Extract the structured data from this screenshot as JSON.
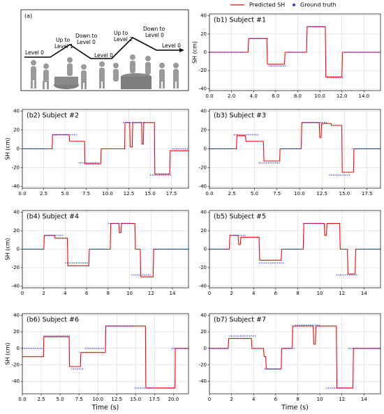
{
  "legend": {
    "items": [
      {
        "name": "Predicted SH",
        "color": "#ff0000"
      },
      {
        "name": "Ground truth",
        "color": "#3333ff"
      }
    ]
  },
  "diagram": {
    "label": "(a)",
    "steps": [
      [
        "Level 0"
      ],
      [
        "Up to",
        "Level 1"
      ],
      [
        "Down to",
        "Level 0"
      ],
      [
        "Level 0"
      ],
      [
        "Up to",
        "Level 2"
      ],
      [
        "Down to",
        "Level 0"
      ],
      [
        "Level 0"
      ]
    ]
  },
  "chart_data": [
    {
      "type": "line",
      "title": "(b1) Subject #1",
      "ylabel": "SH (cm)",
      "grid": true,
      "xlim": [
        0,
        15.5
      ],
      "ylim": [
        -42,
        42
      ],
      "yticks": [
        -40,
        -20,
        0,
        20,
        40
      ],
      "xticks": [
        {
          "value": 0,
          "label": "0.0"
        },
        {
          "value": 2,
          "label": "2.0"
        },
        {
          "value": 4,
          "label": "4.0"
        },
        {
          "value": 6,
          "label": "6.0"
        },
        {
          "value": 8,
          "label": "8.0"
        },
        {
          "value": 10,
          "label": "10.0"
        },
        {
          "value": 12,
          "label": "12.0"
        },
        {
          "value": 14,
          "label": "14.0"
        }
      ],
      "series": [
        {
          "color": "#ff0000",
          "x": [
            0,
            3.5,
            3.55,
            5.2,
            5.25,
            6.8,
            6.85,
            8.8,
            8.85,
            10.5,
            10.55,
            12.0,
            12.05,
            15.5
          ],
          "values": [
            0,
            0,
            15,
            15,
            -13,
            -13,
            0,
            0,
            28,
            28,
            -27,
            -27,
            0,
            0
          ]
        },
        {
          "color": "#3333ff",
          "dotted": true,
          "x": [
            0,
            3.3,
            3.45,
            3.6,
            5.3,
            5.35,
            5.4,
            7.0,
            7.05,
            7.1,
            8.7,
            8.75,
            8.8,
            10.6,
            10.65,
            10.7,
            12.1,
            12.15,
            12.2,
            15.5
          ],
          "values": [
            0,
            0,
            null,
            15,
            15,
            null,
            -15,
            -15,
            null,
            0,
            0,
            null,
            28,
            28,
            null,
            -28,
            -28,
            null,
            0,
            0
          ]
        }
      ]
    },
    {
      "type": "line",
      "title": "(b2) Subject #2",
      "ylabel": "SH (cm)",
      "grid": true,
      "xlim": [
        0,
        19.5
      ],
      "ylim": [
        -42,
        42
      ],
      "yticks": [
        -40,
        -20,
        0,
        20,
        40
      ],
      "xticks": [
        {
          "value": 0,
          "label": "0.0"
        },
        2.5,
        {
          "value": 5,
          "label": "5.0"
        },
        7.5,
        {
          "value": 10,
          "label": "10.0"
        },
        12.5,
        {
          "value": 15,
          "label": "15.0"
        },
        17.5
      ],
      "series": [
        {
          "color": "#ff0000",
          "x": [
            0,
            3.5,
            3.55,
            5.5,
            5.55,
            7.3,
            7.35,
            9.2,
            9.25,
            12.0,
            12.05,
            12.6,
            12.65,
            12.9,
            12.95,
            14.0,
            14.05,
            14.2,
            14.25,
            15.5,
            15.55,
            17.3,
            17.35,
            19.5
          ],
          "values": [
            0,
            0,
            15,
            15,
            8,
            8,
            -16,
            -16,
            0,
            0,
            28,
            28,
            2,
            2,
            28,
            28,
            5,
            5,
            28,
            28,
            -27,
            -27,
            -2,
            -2
          ]
        },
        {
          "color": "#3333ff",
          "dotted": true,
          "x": [
            0,
            3,
            3.2,
            3.5,
            6.5,
            6.55,
            6.6,
            9.0,
            9.1,
            11.8,
            14.5,
            14.7,
            15.0,
            17.5,
            17.55,
            17.6,
            19.5
          ],
          "values": [
            0,
            0,
            null,
            15,
            15,
            null,
            -15,
            -15,
            null,
            28,
            28,
            null,
            -28,
            -28,
            null,
            0,
            0
          ]
        }
      ]
    },
    {
      "type": "line",
      "title": "(b3) Subject #3",
      "grid": true,
      "xlim": [
        0,
        19
      ],
      "ylim": [
        -42,
        42
      ],
      "yticks": [
        -40,
        -20,
        0,
        20,
        40
      ],
      "xticks": [
        {
          "value": 0,
          "label": "0.0"
        },
        2.5,
        {
          "value": 5,
          "label": "5.0"
        },
        7.5,
        {
          "value": 10,
          "label": "10.0"
        },
        12.5,
        {
          "value": 15,
          "label": "15.0"
        },
        17.5
      ],
      "series": [
        {
          "color": "#ff0000",
          "x": [
            0,
            3.0,
            3.05,
            4.0,
            4.05,
            6.0,
            6.05,
            7.8,
            7.85,
            10.2,
            10.25,
            12.2,
            12.25,
            12.4,
            12.45,
            13.5,
            13.55,
            14.7,
            14.75,
            16.0,
            16.05,
            19
          ],
          "values": [
            0,
            0,
            14,
            14,
            8,
            8,
            -13,
            -13,
            0,
            0,
            28,
            28,
            12,
            12,
            27,
            27,
            25,
            25,
            -25,
            -25,
            0,
            0
          ]
        },
        {
          "color": "#3333ff",
          "dotted": true,
          "x": [
            0,
            2.6,
            2.65,
            2.7,
            5.4,
            5.45,
            5.5,
            7.8,
            7.9,
            8.0,
            10.2,
            10.25,
            10.3,
            13.0,
            13.1,
            13.3,
            15.7,
            15.75,
            15.8,
            19
          ],
          "values": [
            0,
            0,
            null,
            15,
            15,
            null,
            -15,
            -15,
            null,
            0,
            0,
            null,
            28,
            28,
            null,
            -28,
            -28,
            null,
            0,
            0
          ]
        }
      ]
    },
    {
      "type": "line",
      "title": "(b4) Subject #4",
      "ylabel": "SH (cm)",
      "grid": true,
      "xlim": [
        0,
        15.5
      ],
      "ylim": [
        -42,
        42
      ],
      "yticks": [
        -40,
        -20,
        0,
        20,
        40
      ],
      "xticks": [
        0,
        2,
        4,
        6,
        8,
        10,
        12,
        14
      ],
      "series": [
        {
          "color": "#ff0000",
          "x": [
            0,
            2.0,
            2.05,
            3.0,
            3.05,
            4.2,
            4.25,
            6.2,
            6.25,
            8.2,
            8.25,
            9.0,
            9.05,
            9.2,
            9.25,
            10.5,
            10.55,
            11.0,
            11.05,
            12.2,
            12.25,
            15.5
          ],
          "values": [
            0,
            0,
            15,
            15,
            12,
            12,
            -18,
            -18,
            0,
            0,
            28,
            28,
            18,
            18,
            28,
            28,
            0,
            0,
            -30,
            -30,
            0,
            0
          ]
        },
        {
          "color": "#3333ff",
          "dotted": true,
          "x": [
            0,
            2.0,
            2.1,
            2.2,
            3.9,
            3.95,
            4.0,
            6.1,
            6.2,
            6.3,
            7.9,
            7.95,
            8.0,
            10.1,
            10.15,
            10.2,
            12.0,
            12.1,
            12.2,
            15.5
          ],
          "values": [
            0,
            0,
            null,
            15,
            15,
            null,
            -15,
            -15,
            null,
            0,
            0,
            null,
            28,
            28,
            null,
            -28,
            -28,
            null,
            0,
            0
          ]
        }
      ]
    },
    {
      "type": "line",
      "title": "(b5) Subject #5",
      "grid": true,
      "xlim": [
        0,
        15.5
      ],
      "ylim": [
        -42,
        42
      ],
      "yticks": [
        -40,
        -20,
        0,
        20,
        40
      ],
      "xticks": [
        0,
        2,
        4,
        6,
        8,
        10,
        12,
        14
      ],
      "series": [
        {
          "color": "#ff0000",
          "x": [
            0,
            1.8,
            1.85,
            2.6,
            2.65,
            2.8,
            2.85,
            4.5,
            4.55,
            6.5,
            6.55,
            8.5,
            8.55,
            10.4,
            10.45,
            10.6,
            10.65,
            11.8,
            11.85,
            12.5,
            12.55,
            13.2,
            13.25,
            15.5
          ],
          "values": [
            0,
            0,
            15,
            15,
            5,
            5,
            13,
            13,
            -12,
            -12,
            0,
            0,
            28,
            28,
            15,
            15,
            28,
            28,
            0,
            0,
            -27,
            -27,
            0,
            0
          ]
        },
        {
          "color": "#3333ff",
          "dotted": true,
          "x": [
            0,
            1.8,
            2.0,
            2.2,
            3.3,
            3.9,
            4.5,
            6.8,
            6.85,
            6.9,
            8.4,
            8.45,
            8.5,
            10.2,
            10.8,
            11.5,
            13.5,
            13.55,
            13.6,
            15.5
          ],
          "values": [
            0,
            0,
            null,
            15,
            15,
            null,
            -15,
            -15,
            null,
            0,
            0,
            null,
            28,
            28,
            null,
            -28,
            -28,
            null,
            0,
            0
          ]
        }
      ]
    },
    {
      "type": "line",
      "title": "(b6) Subject #6",
      "ylabel": "SH (cm)",
      "xlabel": "Time (s)",
      "grid": true,
      "xlim": [
        0,
        22
      ],
      "ylim": [
        -55,
        42
      ],
      "yticks": [
        -40,
        -20,
        0,
        20,
        40
      ],
      "xticks": [
        {
          "value": 0,
          "label": "0.0"
        },
        2.5,
        {
          "value": 5,
          "label": "5.0"
        },
        7.5,
        {
          "value": 10,
          "label": "10.0"
        },
        12.5,
        {
          "value": 15,
          "label": "15.0"
        },
        17.5,
        {
          "value": 20,
          "label": "20.0"
        }
      ],
      "series": [
        {
          "color": "#ff0000",
          "x": [
            0,
            2.8,
            2.85,
            6.2,
            6.25,
            7.7,
            7.75,
            11.0,
            11.05,
            16.3,
            16.35,
            20.2,
            20.25,
            22
          ],
          "values": [
            -10,
            -10,
            14,
            14,
            -22,
            -22,
            -5,
            -5,
            27,
            27,
            -48,
            -48,
            0,
            0
          ]
        },
        {
          "color": "#3333ff",
          "dotted": true,
          "x": [
            0,
            2.7,
            2.75,
            2.8,
            6.4,
            6.45,
            6.5,
            8.2,
            8.25,
            8.3,
            10.9,
            10.95,
            11.0,
            14.8,
            14.85,
            14.9,
            17.5,
            18.5,
            19.8,
            22
          ],
          "values": [
            0,
            0,
            null,
            15,
            15,
            null,
            -25,
            -25,
            null,
            0,
            0,
            null,
            27,
            27,
            null,
            -48,
            -48,
            null,
            0,
            0
          ]
        }
      ]
    },
    {
      "type": "line",
      "title": "(b7) Subject #7",
      "xlabel": "Time (s)",
      "grid": true,
      "xlim": [
        0,
        15.5
      ],
      "ylim": [
        -55,
        42
      ],
      "yticks": [
        -40,
        -20,
        0,
        20,
        40
      ],
      "xticks": [
        0,
        2,
        4,
        6,
        8,
        10,
        12,
        14
      ],
      "series": [
        {
          "color": "#ff0000",
          "x": [
            0,
            1.7,
            1.75,
            3.8,
            3.85,
            4.9,
            4.95,
            5.1,
            5.15,
            6.5,
            6.55,
            7.5,
            7.55,
            9.4,
            9.45,
            9.6,
            9.65,
            11.5,
            11.55,
            13.0,
            13.05,
            15.5
          ],
          "values": [
            0,
            0,
            12,
            12,
            0,
            0,
            -10,
            -10,
            -25,
            -25,
            0,
            0,
            27,
            27,
            5,
            5,
            27,
            27,
            -48,
            -48,
            0,
            0
          ]
        },
        {
          "color": "#3333ff",
          "dotted": true,
          "x": [
            0,
            1.7,
            1.75,
            1.8,
            4.2,
            4.6,
            5.0,
            6.5,
            6.6,
            6.8,
            7.7,
            7.75,
            7.8,
            10.0,
            10.3,
            10.6,
            12.3,
            12.45,
            12.6,
            15.5
          ],
          "values": [
            0,
            0,
            null,
            15,
            15,
            null,
            -25,
            -25,
            null,
            0,
            0,
            null,
            28,
            28,
            null,
            -48,
            -48,
            null,
            0,
            0
          ]
        }
      ]
    }
  ]
}
